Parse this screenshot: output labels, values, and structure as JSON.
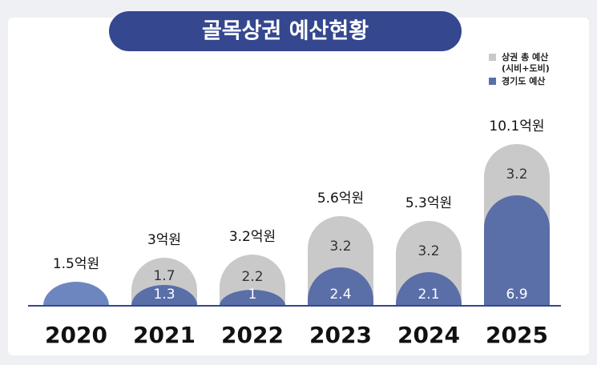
{
  "chart_data": {
    "type": "bar",
    "title": "골목상권 예산현황",
    "categories": [
      "2020",
      "2021",
      "2022",
      "2023",
      "2024",
      "2025"
    ],
    "series": [
      {
        "name": "경기도 예산",
        "color": "#5a6ea8",
        "values": [
          1.5,
          1.3,
          1,
          2.4,
          2.1,
          6.9
        ],
        "value_labels": [
          null,
          "1.3",
          "1",
          "2.4",
          "2.1",
          "6.9"
        ]
      },
      {
        "name": "상권 총 예산 (시비+도비)",
        "color": "#c9c9c9",
        "values": [
          null,
          1.7,
          2.2,
          3.2,
          3.2,
          3.2
        ]
      }
    ],
    "totals": [
      1.5,
      3,
      3.2,
      5.6,
      5.3,
      10.1
    ],
    "totals_labels": [
      "1.5억원",
      "3억원",
      "3.2억원",
      "5.6억원",
      "5.3억원",
      "10.1억원"
    ],
    "stacked": true
  }
}
